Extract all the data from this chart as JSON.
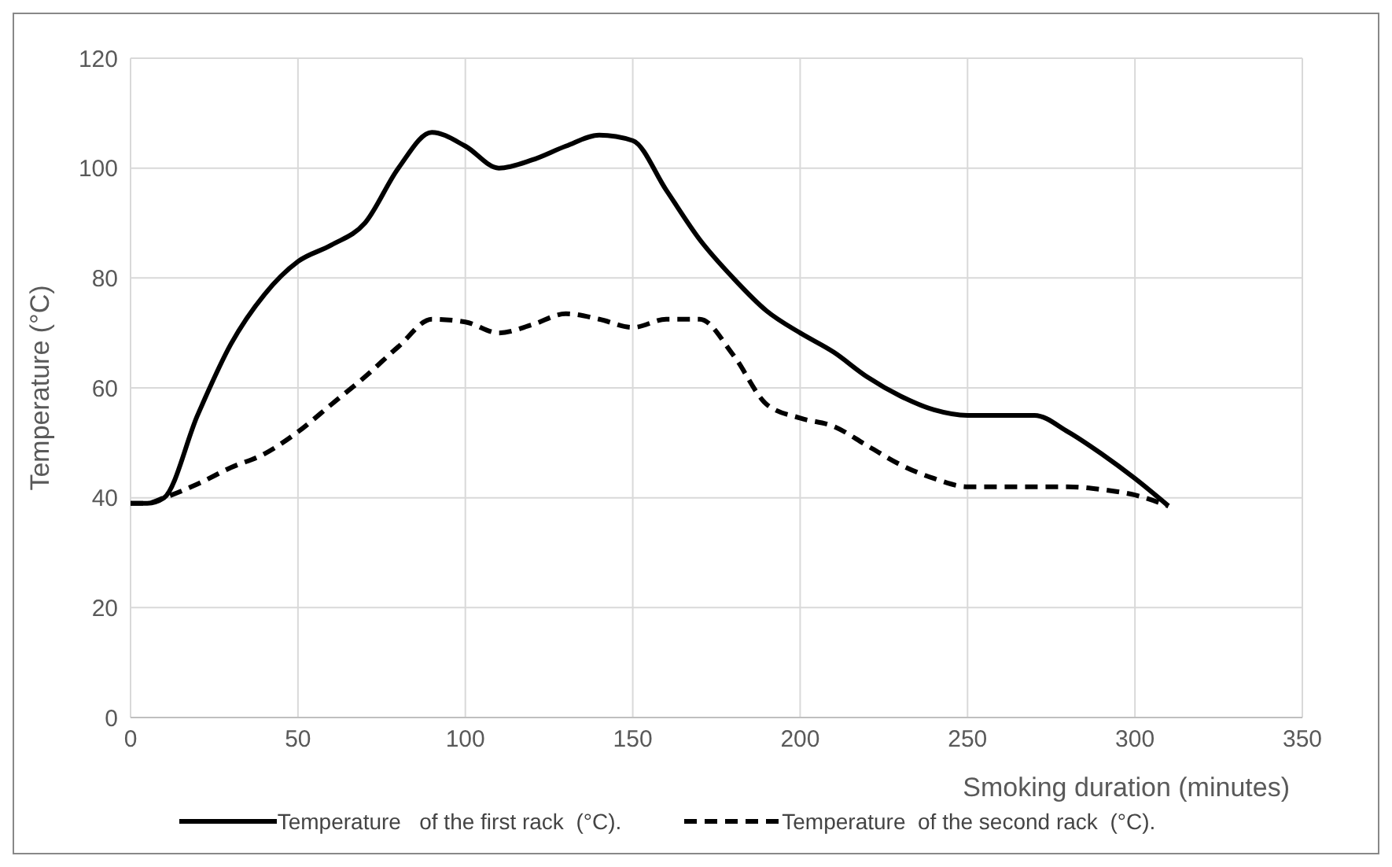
{
  "chart_data": {
    "type": "line",
    "xlabel": "Smoking duration (minutes)",
    "ylabel": "Temperature (°C)",
    "x": [
      0,
      5,
      10,
      20,
      30,
      40,
      50,
      60,
      70,
      80,
      90,
      100,
      110,
      120,
      130,
      140,
      150,
      160,
      170,
      180,
      190,
      200,
      210,
      220,
      230,
      240,
      250,
      260,
      270,
      280,
      290,
      300,
      310
    ],
    "series": [
      {
        "name": "Temperature   of the first rack  (°C).",
        "color": "#000000",
        "line_style": "solid",
        "values": [
          39,
          39,
          40,
          55,
          68,
          77,
          83,
          86,
          90,
          100,
          106.5,
          104,
          100,
          101.5,
          104,
          106,
          105,
          96,
          87,
          80,
          74,
          70,
          66.5,
          62,
          58.5,
          56,
          55,
          55,
          55,
          52,
          48,
          43.5,
          38.5
        ]
      },
      {
        "name": "Temperature  of the second rack  (°C).",
        "color": "#000000",
        "line_style": "dashed",
        "values": [
          39,
          39,
          40,
          42.5,
          45.5,
          48,
          52,
          57,
          62,
          67.5,
          72.5,
          72,
          70,
          71.5,
          73.5,
          72.5,
          71,
          72.5,
          72.5,
          66,
          57,
          54.5,
          53,
          49.5,
          46,
          43.5,
          42,
          42,
          42,
          42,
          41.5,
          40.5,
          38.5
        ]
      }
    ],
    "xlim": [
      0,
      350
    ],
    "xticks": [
      0,
      50,
      100,
      150,
      200,
      250,
      300,
      350
    ],
    "ylim": [
      0,
      120
    ],
    "yticks": [
      0,
      20,
      40,
      60,
      80,
      100,
      120
    ],
    "grid": true,
    "legend": "bottom",
    "marker": "none"
  }
}
